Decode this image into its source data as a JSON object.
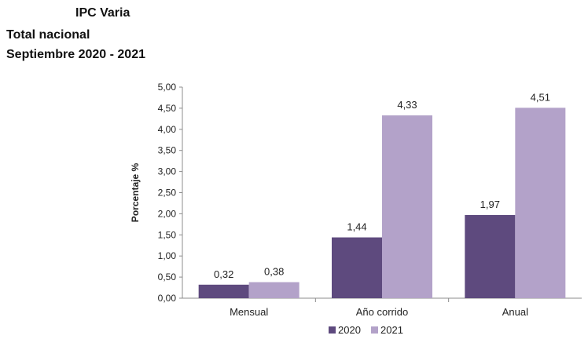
{
  "title": {
    "line1": "IPC Varia",
    "line2": "Total nacional",
    "line3": "Septiembre 2020 - 2021"
  },
  "colors": {
    "series_2020": "#5e4a7e",
    "series_2021": "#b3a2c9",
    "axis": "#8c8c8c"
  },
  "chart_data": {
    "type": "bar",
    "categories": [
      "Mensual",
      "Año corrido",
      "Anual"
    ],
    "series": [
      {
        "name": "2020",
        "values": [
          0.32,
          1.44,
          1.97
        ],
        "labels": [
          "0,32",
          "1,44",
          "1,97"
        ]
      },
      {
        "name": "2021",
        "values": [
          0.38,
          4.33,
          4.51
        ],
        "labels": [
          "0,38",
          "4,33",
          "4,51"
        ]
      }
    ],
    "ylabel": "Porcentaje %",
    "xlabel": "",
    "ylim": [
      0,
      5
    ],
    "yticks": [
      0,
      0.5,
      1,
      1.5,
      2,
      2.5,
      3,
      3.5,
      4,
      4.5,
      5
    ],
    "ytick_labels": [
      "0,00",
      "0,50",
      "1,00",
      "1,50",
      "2,00",
      "2,50",
      "3,00",
      "3,50",
      "4,00",
      "4,50",
      "5,00"
    ],
    "grid": false,
    "legend_position": "bottom-center"
  }
}
